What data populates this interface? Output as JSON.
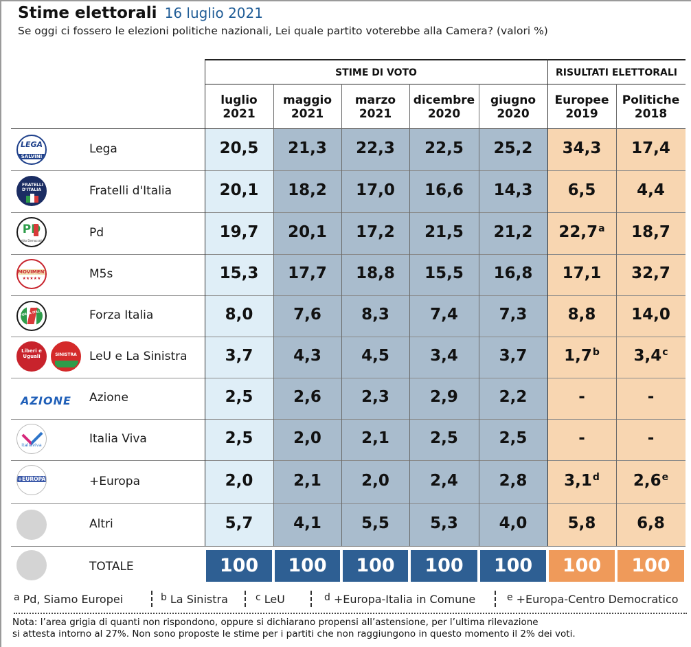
{
  "header": {
    "title": "Stime elettorali",
    "date": "16 luglio 2021",
    "subtitle": "Se oggi ci fossero le elezioni politiche nazionali, Lei quale partito voterebbe alla Camera? (valori %)"
  },
  "colors": {
    "current_column": "#dfeef7",
    "past_estimates": "#a9bccd",
    "election_results": "#f8d6b1",
    "total_blue": "#2e5f93",
    "total_orange": "#ef9a5a",
    "date_blue": "#1f5c96"
  },
  "chart_data": {
    "type": "table",
    "title": "Stime elettorali",
    "groups": [
      {
        "label": "STIME DI VOTO",
        "span": 5
      },
      {
        "label": "RISULTATI ELETTORALI",
        "span": 2
      }
    ],
    "columns": [
      {
        "line1": "luglio",
        "line2": "2021"
      },
      {
        "line1": "maggio",
        "line2": "2021"
      },
      {
        "line1": "marzo",
        "line2": "2021"
      },
      {
        "line1": "dicembre",
        "line2": "2020"
      },
      {
        "line1": "giugno",
        "line2": "2020"
      },
      {
        "line1": "Europee",
        "line2": "2019"
      },
      {
        "line1": "Politiche",
        "line2": "2018"
      }
    ],
    "rows": [
      {
        "party": "Lega",
        "logo": "lega-salvini-logo",
        "values": [
          "20,5",
          "21,3",
          "22,3",
          "22,5",
          "25,2",
          "34,3",
          "17,4"
        ],
        "notes": [
          "",
          "",
          "",
          "",
          "",
          "",
          ""
        ]
      },
      {
        "party": "Fratelli d'Italia",
        "logo": "fratelli-italia-logo",
        "values": [
          "20,1",
          "18,2",
          "17,0",
          "16,6",
          "14,3",
          "6,5",
          "4,4"
        ],
        "notes": [
          "",
          "",
          "",
          "",
          "",
          "",
          ""
        ]
      },
      {
        "party": "Pd",
        "logo": "pd-logo",
        "values": [
          "19,7",
          "20,1",
          "17,2",
          "21,5",
          "21,2",
          "22,7",
          "18,7"
        ],
        "notes": [
          "",
          "",
          "",
          "",
          "",
          "a",
          ""
        ]
      },
      {
        "party": "M5s",
        "logo": "m5s-logo",
        "values": [
          "15,3",
          "17,7",
          "18,8",
          "15,5",
          "16,8",
          "17,1",
          "32,7"
        ],
        "notes": [
          "",
          "",
          "",
          "",
          "",
          "",
          ""
        ]
      },
      {
        "party": "Forza Italia",
        "logo": "forza-italia-logo",
        "values": [
          "8,0",
          "7,6",
          "8,3",
          "7,4",
          "7,3",
          "8,8",
          "14,0"
        ],
        "notes": [
          "",
          "",
          "",
          "",
          "",
          "",
          ""
        ]
      },
      {
        "party": "LeU e La Sinistra",
        "logo": "leu-sinistra-logo",
        "values": [
          "3,7",
          "4,3",
          "4,5",
          "3,4",
          "3,7",
          "1,7",
          "3,4"
        ],
        "notes": [
          "",
          "",
          "",
          "",
          "",
          "b",
          "c"
        ]
      },
      {
        "party": "Azione",
        "logo": "azione-logo",
        "values": [
          "2,5",
          "2,6",
          "2,3",
          "2,9",
          "2,2",
          "-",
          "-"
        ],
        "notes": [
          "",
          "",
          "",
          "",
          "",
          "",
          ""
        ]
      },
      {
        "party": "Italia Viva",
        "logo": "italia-viva-logo",
        "values": [
          "2,5",
          "2,0",
          "2,1",
          "2,5",
          "2,5",
          "-",
          "-"
        ],
        "notes": [
          "",
          "",
          "",
          "",
          "",
          "",
          ""
        ]
      },
      {
        "party": "+Europa",
        "logo": "piu-europa-logo",
        "values": [
          "2,0",
          "2,1",
          "2,0",
          "2,4",
          "2,8",
          "3,1",
          "2,6"
        ],
        "notes": [
          "",
          "",
          "",
          "",
          "",
          "d",
          "e"
        ]
      },
      {
        "party": "Altri",
        "logo": "grey-circle",
        "values": [
          "5,7",
          "4,1",
          "5,5",
          "5,3",
          "4,0",
          "5,8",
          "6,8"
        ],
        "notes": [
          "",
          "",
          "",
          "",
          "",
          "",
          ""
        ]
      }
    ],
    "total": {
      "label": "TOTALE",
      "values": [
        "100",
        "100",
        "100",
        "100",
        "100",
        "100",
        "100"
      ]
    }
  },
  "logos": {
    "lega_text": "LEGA",
    "lega_sub": "SALVINI",
    "fdi_text": "FRATELLI D'ITALIA",
    "pd_text": "PD",
    "pd_sub": "Partito Democratico",
    "m5s_text": "MOVIMENTO",
    "forza_text": "FORZA ITALIA",
    "liberi_text": "Liberi e Uguali",
    "sinistra_text": "SINISTRA",
    "azione_text": "AZIONE",
    "italiaviva_text": "italiaviva",
    "europa_text": "+EUROPA"
  },
  "footnotes": [
    {
      "mark": "a",
      "text": "Pd, Siamo Europei"
    },
    {
      "mark": "b",
      "text": "La Sinistra"
    },
    {
      "mark": "c",
      "text": "LeU"
    },
    {
      "mark": "d",
      "text": "+Europa-Italia in Comune"
    },
    {
      "mark": "e",
      "text": "+Europa-Centro Democratico"
    }
  ],
  "nota": {
    "line1": "Nota: l’area grigia di quanti non rispondono, oppure si dichiarano propensi all’astensione, per l’ultima rilevazione",
    "line2": "si attesta intorno al 27%. Non sono proposte le stime per i partiti che non raggiungono in questo momento il 2% dei voti."
  }
}
